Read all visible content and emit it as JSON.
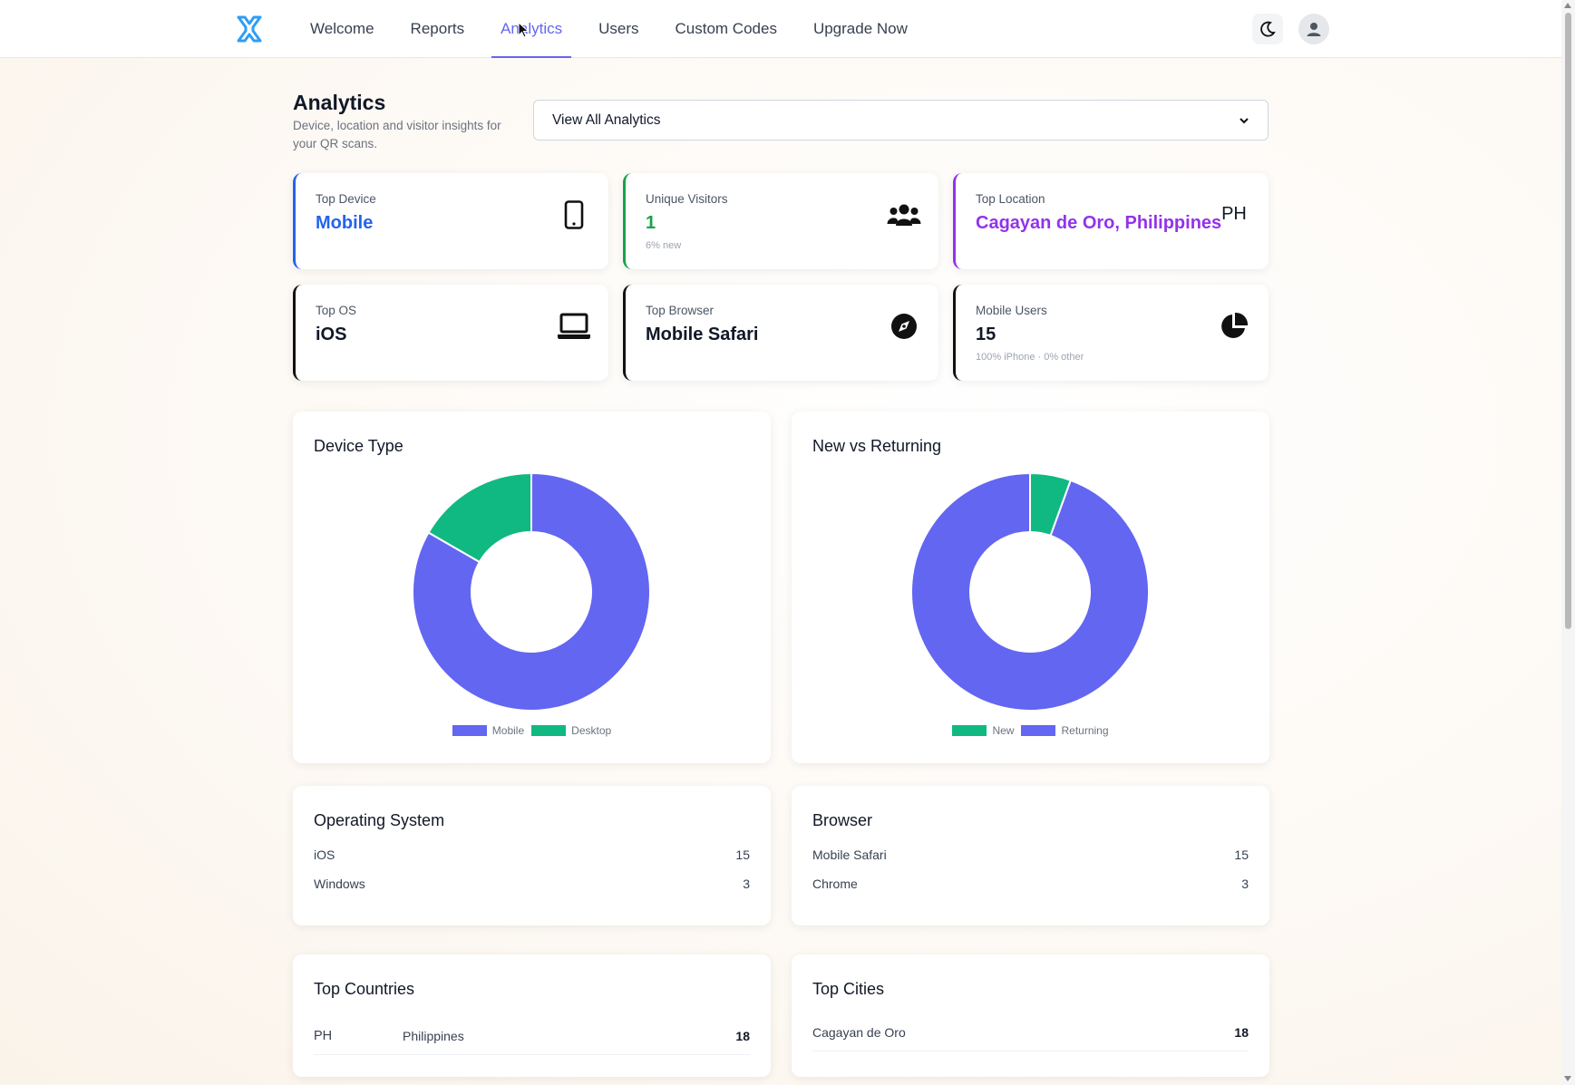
{
  "nav": {
    "items": [
      {
        "label": "Welcome",
        "active": false
      },
      {
        "label": "Reports",
        "active": false
      },
      {
        "label": "Analytics",
        "active": true
      },
      {
        "label": "Users",
        "active": false
      },
      {
        "label": "Custom Codes",
        "active": false
      },
      {
        "label": "Upgrade Now",
        "active": false
      }
    ],
    "logo_icon": "x-logo-icon",
    "theme_icon": "moon-icon",
    "user_icon": "user-icon"
  },
  "header": {
    "title": "Analytics",
    "subtitle": "Device, location and visitor insights for your QR scans.",
    "filter": {
      "selected": "View All Analytics"
    }
  },
  "stats": {
    "top_device": {
      "label": "Top Device",
      "value": "Mobile",
      "icon": "smartphone-icon",
      "accent": "#2563eb"
    },
    "unique_visitors": {
      "label": "Unique Visitors",
      "value": "1",
      "note": "6% new",
      "icon": "users-icon",
      "accent": "#16a34a"
    },
    "top_location": {
      "label": "Top Location",
      "value": "Cagayan de Oro, Philippines",
      "badge": "PH",
      "accent": "#9333ea"
    },
    "top_os": {
      "label": "Top OS",
      "value": "iOS",
      "icon": "laptop-icon",
      "accent": "#111111"
    },
    "top_browser": {
      "label": "Top Browser",
      "value": "Mobile Safari",
      "icon": "compass-icon",
      "accent": "#111111"
    },
    "mobile_users": {
      "label": "Mobile Users",
      "value": "15",
      "note": "100% iPhone · 0% other",
      "icon": "pie-chart-icon",
      "accent": "#111111"
    }
  },
  "chart_data": [
    {
      "type": "pie",
      "title": "Device Type",
      "categories": [
        "Mobile",
        "Desktop"
      ],
      "values": [
        15,
        3
      ],
      "colors": [
        "#6366f1",
        "#10b981"
      ],
      "donut": true,
      "legend": "bottom"
    },
    {
      "type": "pie",
      "title": "New vs Returning",
      "categories": [
        "New",
        "Returning"
      ],
      "values": [
        1,
        17
      ],
      "colors": [
        "#10b981",
        "#6366f1"
      ],
      "donut": true,
      "legend": "bottom"
    }
  ],
  "operating_system": {
    "title": "Operating System",
    "rows": [
      {
        "name": "iOS",
        "count": "15"
      },
      {
        "name": "Windows",
        "count": "3"
      }
    ]
  },
  "browser": {
    "title": "Browser",
    "rows": [
      {
        "name": "Mobile Safari",
        "count": "15"
      },
      {
        "name": "Chrome",
        "count": "3"
      }
    ]
  },
  "top_countries": {
    "title": "Top Countries",
    "rows": [
      {
        "code": "PH",
        "name": "Philippines",
        "count": "18"
      }
    ]
  },
  "top_cities": {
    "title": "Top Cities",
    "rows": [
      {
        "name": "Cagayan de Oro",
        "count": "18"
      }
    ]
  }
}
